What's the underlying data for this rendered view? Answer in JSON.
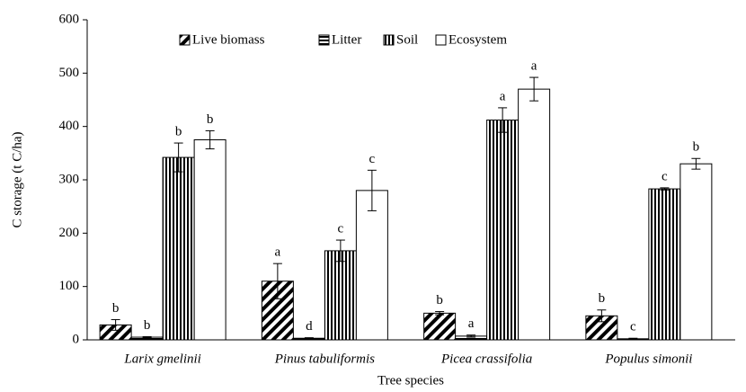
{
  "chart_data": {
    "type": "bar",
    "y_label": "C storage (t C/ha)",
    "x_label": "Tree species",
    "categories": [
      "Larix gmelinii",
      "Pinus tabuliformis",
      "Picea crassifolia",
      "Populus simonii"
    ],
    "series": [
      {
        "name": "Live biomass",
        "color": "#000000",
        "pattern": "diagonal",
        "values": [
          28,
          110,
          50,
          45
        ],
        "errors": [
          10,
          33,
          3,
          11
        ],
        "letters": [
          "b",
          "a",
          "b",
          "b"
        ]
      },
      {
        "name": "Litter",
        "color": "#000000",
        "pattern": "horizontal",
        "values": [
          5,
          3,
          7,
          2
        ],
        "errors": [
          1,
          1,
          2,
          1
        ],
        "letters": [
          "b",
          "d",
          "a",
          "c"
        ]
      },
      {
        "name": "Soil",
        "color": "#000000",
        "pattern": "vertical",
        "values": [
          342,
          167,
          412,
          283
        ],
        "errors": [
          27,
          20,
          23,
          2
        ],
        "letters": [
          "b",
          "c",
          "a",
          "c"
        ]
      },
      {
        "name": "Ecosystem",
        "color": "#000000",
        "pattern": "none",
        "values": [
          375,
          280,
          470,
          330
        ],
        "errors": [
          17,
          38,
          22,
          10
        ],
        "letters": [
          "b",
          "c",
          "a",
          "b"
        ]
      }
    ],
    "ylim": [
      0,
      600
    ],
    "yticks": [
      0,
      100,
      200,
      300,
      400,
      500,
      600
    ],
    "grid": false,
    "legend": "top"
  }
}
